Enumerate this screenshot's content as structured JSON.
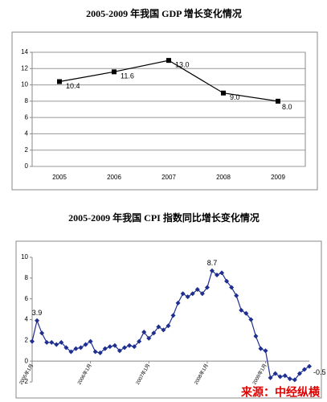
{
  "chart_data": [
    {
      "type": "line",
      "title": "2005-2009 年我国 GDP 增长变化情况",
      "categories": [
        "2005",
        "2006",
        "2007",
        "2008",
        "2009"
      ],
      "series": [
        {
          "name": "GDP",
          "color": "#000000",
          "values": [
            10.4,
            11.6,
            13.0,
            9.0,
            8.0
          ],
          "value_labels": [
            "10.4",
            "11.6",
            "13.0",
            "9.0",
            "8.0"
          ]
        }
      ],
      "ylim": [
        0,
        14
      ],
      "yticks": [
        0,
        2,
        4,
        6,
        8,
        10,
        12,
        14
      ],
      "grid": true,
      "marker": "square"
    },
    {
      "type": "line",
      "title": "2005-2009 年我国 CPI 指数同比增长变化情况",
      "categories": [
        "2005年1月",
        null,
        null,
        null,
        null,
        null,
        null,
        null,
        null,
        null,
        null,
        null,
        "2006年1月",
        null,
        null,
        null,
        null,
        null,
        null,
        null,
        null,
        null,
        null,
        null,
        "2007年1月",
        null,
        null,
        null,
        null,
        null,
        null,
        null,
        null,
        null,
        null,
        null,
        "2008年1月",
        null,
        null,
        null,
        null,
        null,
        null,
        null,
        null,
        null,
        null,
        null,
        "2009年1月",
        null,
        null,
        null,
        null,
        null,
        null,
        null,
        null,
        null
      ],
      "series": [
        {
          "name": "CPI",
          "color": "#1f2f8f",
          "values": [
            1.9,
            3.9,
            2.7,
            1.8,
            1.8,
            1.6,
            1.8,
            1.3,
            0.9,
            1.2,
            1.3,
            1.6,
            1.9,
            0.9,
            0.8,
            1.2,
            1.4,
            1.5,
            1.0,
            1.3,
            1.5,
            1.4,
            1.9,
            2.8,
            2.2,
            2.7,
            3.3,
            3.0,
            3.4,
            4.4,
            5.6,
            6.5,
            6.2,
            6.5,
            6.9,
            6.5,
            7.1,
            8.7,
            8.3,
            8.5,
            7.7,
            7.1,
            6.3,
            4.9,
            4.6,
            4.0,
            2.4,
            1.2,
            1.0,
            -1.6,
            -1.2,
            -1.5,
            -1.4,
            -1.7,
            -1.8,
            -1.2,
            -0.8,
            -0.5
          ],
          "value_labels": [
            null,
            "3.9",
            null,
            null,
            null,
            null,
            null,
            null,
            null,
            null,
            null,
            null,
            null,
            null,
            null,
            null,
            null,
            null,
            null,
            null,
            null,
            null,
            null,
            null,
            null,
            null,
            null,
            null,
            null,
            null,
            null,
            null,
            null,
            null,
            null,
            null,
            null,
            "8.7",
            null,
            null,
            null,
            null,
            null,
            null,
            null,
            null,
            null,
            null,
            null,
            null,
            null,
            null,
            null,
            null,
            null,
            null,
            null,
            "-0.5"
          ]
        }
      ],
      "ylim": [
        -2,
        10
      ],
      "yticks": [
        -2,
        0,
        2,
        4,
        6,
        8,
        10
      ],
      "grid": false,
      "marker": "diamond",
      "annotation": "来源：中经纵横"
    }
  ]
}
